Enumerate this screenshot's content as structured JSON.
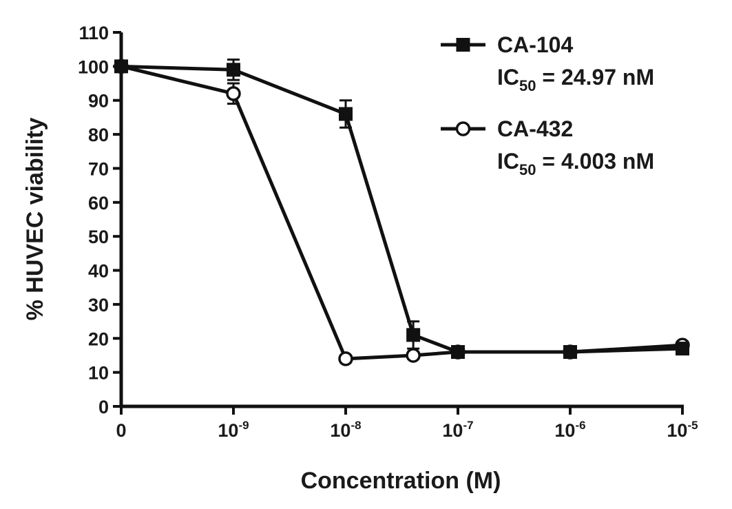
{
  "chart_data": {
    "type": "line",
    "xlabel": "Concentration (M)",
    "ylabel": "% HUVEC viability",
    "ylim": [
      0,
      110
    ],
    "y_ticks": [
      "0",
      "10",
      "20",
      "30",
      "40",
      "50",
      "60",
      "70",
      "80",
      "90",
      "100",
      "110"
    ],
    "x_ticks": [
      {
        "base": "0",
        "exp": ""
      },
      {
        "base": "10",
        "exp": "-9"
      },
      {
        "base": "10",
        "exp": "-8"
      },
      {
        "base": "10",
        "exp": "-7"
      },
      {
        "base": "10",
        "exp": "-6"
      },
      {
        "base": "10",
        "exp": "-5"
      }
    ],
    "x_scale": "log10 concentration, first tick = 0",
    "grid": false,
    "legend_position": "top-right",
    "series": [
      {
        "name": "CA-104",
        "ic50_label": "IC",
        "ic50_sub": "50",
        "ic50_value": " = 24.97 nM",
        "marker": "filled-square",
        "points": [
          {
            "x": "0",
            "y": 100,
            "err": 1
          },
          {
            "x": "1e-9",
            "y": 99,
            "err": 3
          },
          {
            "x": "1e-8",
            "y": 86,
            "err": 4
          },
          {
            "x": "4e-8",
            "y": 21,
            "err": 4
          },
          {
            "x": "1e-7",
            "y": 16,
            "err": 1
          },
          {
            "x": "1e-6",
            "y": 16,
            "err": 1
          },
          {
            "x": "1e-5",
            "y": 17,
            "err": 1
          }
        ]
      },
      {
        "name": "CA-432",
        "ic50_label": "IC",
        "ic50_sub": "50",
        "ic50_value": " = 4.003 nM",
        "marker": "open-circle",
        "points": [
          {
            "x": "0",
            "y": 100,
            "err": 1
          },
          {
            "x": "1e-9",
            "y": 92,
            "err": 3
          },
          {
            "x": "1e-8",
            "y": 14,
            "err": 1
          },
          {
            "x": "4e-8",
            "y": 15,
            "err": 1
          },
          {
            "x": "1e-7",
            "y": 16,
            "err": 1
          },
          {
            "x": "1e-6",
            "y": 16,
            "err": 1
          },
          {
            "x": "1e-5",
            "y": 18,
            "err": 1
          }
        ]
      }
    ]
  }
}
